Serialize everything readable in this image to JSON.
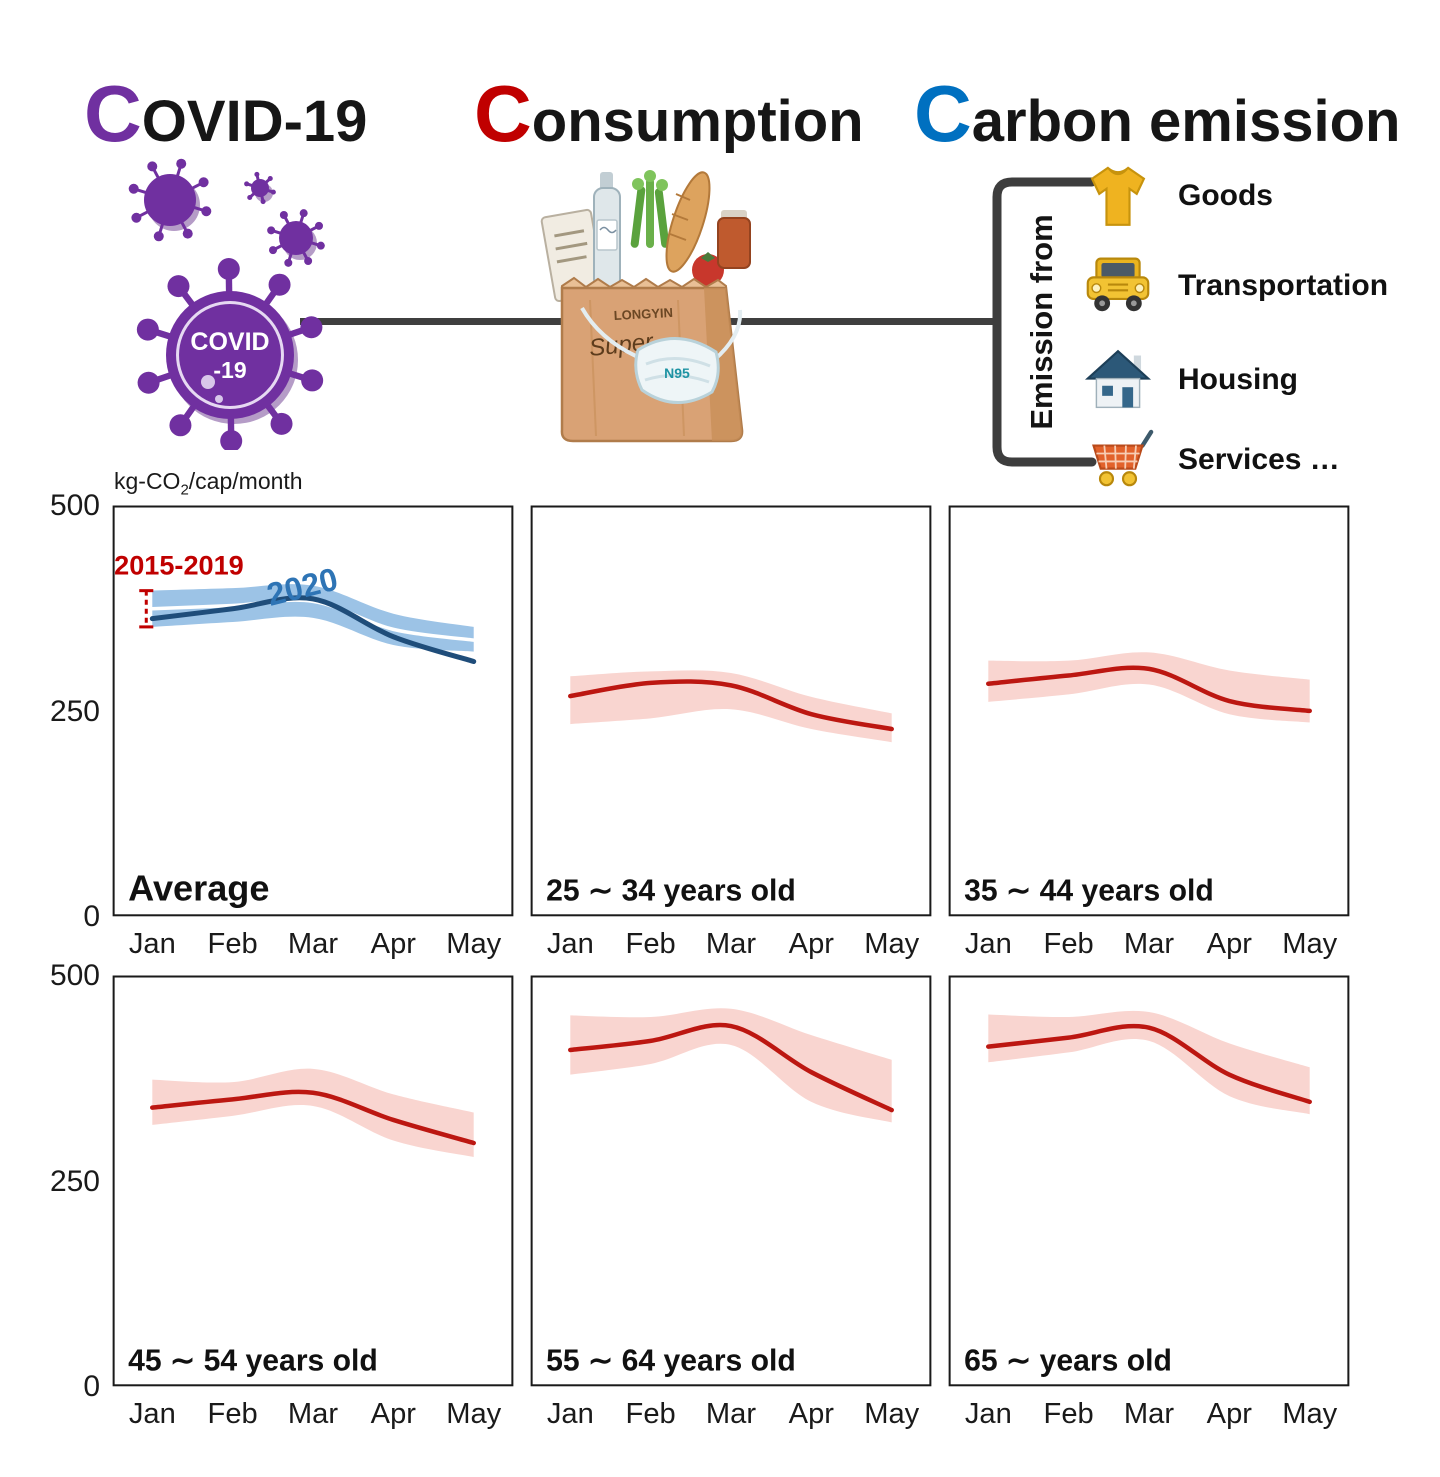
{
  "header": {
    "titles": [
      {
        "initial": "C",
        "rest": "OVID-19"
      },
      {
        "initial": "C",
        "rest": "onsumption"
      },
      {
        "initial": "C",
        "rest": "arbon emission"
      }
    ],
    "virus": {
      "line1": "COVID",
      "line2": "-19"
    },
    "bag": {
      "store": "LONGYIN",
      "script": "Super",
      "mask": "N95"
    },
    "bracket_label": "Emission from",
    "emission_items": [
      {
        "icon": "tshirt-icon",
        "label": "Goods"
      },
      {
        "icon": "car-icon",
        "label": "Transportation"
      },
      {
        "icon": "house-icon",
        "label": "Housing"
      },
      {
        "icon": "cart-icon",
        "label": "Services …"
      }
    ]
  },
  "axis": {
    "unit_pre": "kg-CO",
    "unit_sub": "2",
    "unit_post": "/cap/month",
    "yticks": [
      "500",
      "250",
      "0"
    ],
    "xticks": [
      "Jan",
      "Feb",
      "Mar",
      "Apr",
      "May"
    ]
  },
  "colors": {
    "covid_purple": "#7030a0",
    "consumption_red": "#c00000",
    "carbon_blue": "#0070c0",
    "band_blue": "#9cc3e6",
    "line_navy": "#1f4d7a",
    "band_pink": "#f9d5d0",
    "line_red": "#bc1711"
  },
  "chart_data": [
    {
      "type": "line",
      "title": "Average",
      "x": [
        "Jan",
        "Feb",
        "Mar",
        "Apr",
        "May"
      ],
      "ylim": [
        0,
        500
      ],
      "yticks": [
        0,
        250,
        500
      ],
      "ylabel": "kg-CO2/cap/month",
      "band": {
        "name": "2015-2019 range",
        "color": "#9cc3e6",
        "upper": [
          396,
          399,
          402,
          368,
          352
        ],
        "lower": [
          352,
          358,
          363,
          330,
          322
        ]
      },
      "series": [
        {
          "name": "2015-2019 mean",
          "color": "#ffffff",
          "width": 3.5,
          "values": [
            374,
            378,
            383,
            349,
            336
          ]
        },
        {
          "name": "2020",
          "color": "#1f4d7a",
          "width": 5,
          "values": [
            362,
            374,
            386,
            340,
            310
          ]
        }
      ],
      "annotations": [
        {
          "type": "error-bar",
          "text": "2015-2019",
          "color": "#c00000",
          "x_index": 0
        },
        {
          "type": "series-label",
          "text": "2020",
          "color": "#2e74b5"
        }
      ]
    },
    {
      "type": "line",
      "title": "25 ∼ 34 years old",
      "x": [
        "Jan",
        "Feb",
        "Mar",
        "Apr",
        "May"
      ],
      "ylim": [
        0,
        500
      ],
      "yticks": [
        0,
        250,
        500
      ],
      "band": {
        "name": "2015-2019 range",
        "color": "#f9d5d0",
        "upper": [
          292,
          298,
          296,
          267,
          247
        ],
        "lower": [
          234,
          241,
          252,
          228,
          212
        ]
      },
      "series": [
        {
          "name": "2020",
          "color": "#bc1711",
          "width": 4.5,
          "values": [
            268,
            284,
            281,
            246,
            228
          ]
        }
      ],
      "annotations": []
    },
    {
      "type": "line",
      "title": "35 ∼ 44 years old",
      "x": [
        "Jan",
        "Feb",
        "Mar",
        "Apr",
        "May"
      ],
      "ylim": [
        0,
        500
      ],
      "yticks": [
        0,
        250,
        500
      ],
      "band": {
        "name": "2015-2019 range",
        "color": "#f9d5d0",
        "upper": [
          311,
          311,
          321,
          299,
          288
        ],
        "lower": [
          261,
          270,
          282,
          246,
          236
        ]
      },
      "series": [
        {
          "name": "2020",
          "color": "#bc1711",
          "width": 4.5,
          "values": [
            283,
            293,
            301,
            262,
            250
          ]
        }
      ],
      "annotations": []
    },
    {
      "type": "line",
      "title": "45 ∼ 54 years old",
      "x": [
        "Jan",
        "Feb",
        "Mar",
        "Apr",
        "May"
      ],
      "ylim": [
        0,
        500
      ],
      "yticks": [
        0,
        250,
        500
      ],
      "band": {
        "name": "2015-2019 range",
        "color": "#f9d5d0",
        "upper": [
          373,
          370,
          386,
          355,
          333
        ],
        "lower": [
          318,
          329,
          341,
          299,
          279
        ]
      },
      "series": [
        {
          "name": "2020",
          "color": "#bc1711",
          "width": 4.5,
          "values": [
            339,
            349,
            357,
            324,
            296
          ]
        }
      ],
      "annotations": []
    },
    {
      "type": "line",
      "title": "55 ∼ 64 years old",
      "x": [
        "Jan",
        "Feb",
        "Mar",
        "Apr",
        "May"
      ],
      "ylim": [
        0,
        500
      ],
      "yticks": [
        0,
        250,
        500
      ],
      "band": {
        "name": "2015-2019 range",
        "color": "#f9d5d0",
        "upper": [
          451,
          449,
          459,
          427,
          397
        ],
        "lower": [
          379,
          392,
          415,
          346,
          321
        ]
      },
      "series": [
        {
          "name": "2020",
          "color": "#bc1711",
          "width": 4.5,
          "values": [
            409,
            420,
            438,
            382,
            336
          ]
        }
      ],
      "annotations": []
    },
    {
      "type": "line",
      "title": "65 ∼ years old",
      "x": [
        "Jan",
        "Feb",
        "Mar",
        "Apr",
        "May"
      ],
      "ylim": [
        0,
        500
      ],
      "yticks": [
        0,
        250,
        500
      ],
      "band": {
        "name": "2015-2019 range",
        "color": "#f9d5d0",
        "upper": [
          452,
          449,
          455,
          417,
          388
        ],
        "lower": [
          394,
          406,
          420,
          353,
          331
        ]
      },
      "series": [
        {
          "name": "2020",
          "color": "#bc1711",
          "width": 4.5,
          "values": [
            413,
            424,
            436,
            379,
            346
          ]
        }
      ],
      "annotations": []
    }
  ]
}
